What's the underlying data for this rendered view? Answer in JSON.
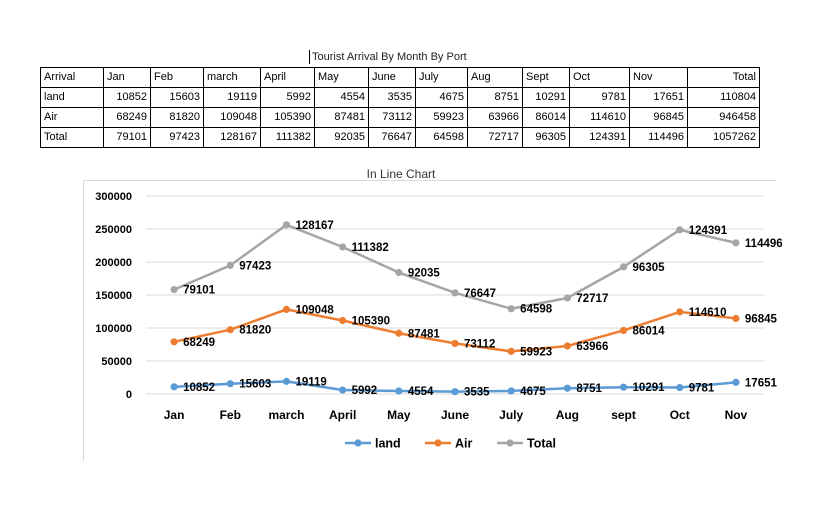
{
  "sheet": {
    "title": "Tourist Arrival By Month By Port",
    "table": {
      "header": [
        "Arrival",
        "Jan",
        "Feb",
        "march",
        "April",
        "May",
        "June",
        "July",
        "Aug",
        "Sept",
        "Oct",
        "Nov",
        "Total"
      ],
      "rows": [
        [
          "land",
          "10852",
          "15603",
          "19119",
          "5992",
          "4554",
          "3535",
          "4675",
          "8751",
          "10291",
          "9781",
          "17651",
          "110804"
        ],
        [
          "Air",
          "68249",
          "81820",
          "109048",
          "105390",
          "87481",
          "73112",
          "59923",
          "63966",
          "86014",
          "114610",
          "96845",
          "946458"
        ],
        [
          "Total",
          "79101",
          "97423",
          "128167",
          "111382",
          "92035",
          "76647",
          "64598",
          "72717",
          "96305",
          "124391",
          "114496",
          "1057262"
        ]
      ]
    }
  },
  "chart_data": {
    "type": "line",
    "title": "In Line Chart",
    "categories": [
      "Jan",
      "Feb",
      "march",
      "April",
      "May",
      "June",
      "July",
      "Aug",
      "sept",
      "Oct",
      "Nov"
    ],
    "series": [
      {
        "name": "land",
        "color": "#5b9bd5",
        "values": [
          10852,
          15603,
          19119,
          5992,
          4554,
          3535,
          4675,
          8751,
          10291,
          9781,
          17651
        ]
      },
      {
        "name": "Air",
        "color": "#ed7d31",
        "values": [
          79101,
          97423,
          128167,
          111382,
          92035,
          76647,
          64598,
          72717,
          96305,
          124391,
          114496
        ]
      },
      {
        "name": "Total",
        "color": "#a5a5a5",
        "values": [
          158202,
          194846,
          256334,
          222764,
          184070,
          153294,
          129196,
          145434,
          192610,
          248782,
          228992
        ]
      }
    ],
    "data_labels": {
      "land": [
        "10852",
        "15603",
        "19119",
        "5992",
        "4554",
        "3535",
        "4675",
        "8751",
        "10291",
        "9781",
        "17651"
      ],
      "Air": [
        "68249",
        "81820",
        "109048",
        "105390",
        "87481",
        "73112",
        "59923",
        "63966",
        "86014",
        "114610",
        "96845"
      ],
      "Total": [
        "79101",
        "97423",
        "128167",
        "111382",
        "92035",
        "76647",
        "64598",
        "72717",
        "96305",
        "124391",
        "114496"
      ]
    },
    "ylim": [
      0,
      300000
    ],
    "yticks": [
      "0",
      "50000",
      "100000",
      "150000",
      "200000",
      "250000",
      "300000"
    ],
    "grid": true,
    "legend": "bottom"
  }
}
